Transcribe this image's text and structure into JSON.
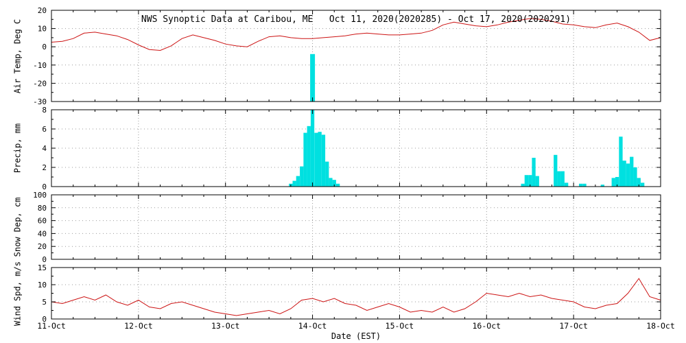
{
  "title": "NWS Synoptic Data at Caribou, ME   Oct 11, 2020(2020285) - Oct 17, 2020(2020291)",
  "xlabel": "Date (EST)",
  "x_tick_labels": [
    "11-Oct",
    "12-Oct",
    "13-Oct",
    "14-Oct",
    "15-Oct",
    "16-Oct",
    "17-Oct",
    "18-Oct"
  ],
  "x_range_days": [
    0,
    7
  ],
  "colors": {
    "temp_line": "#cc1111",
    "wind_line": "#cc1111",
    "precip_bar": "#00e0e0",
    "axis": "#000000",
    "grid_dots": "#999999",
    "background": "#ffffff"
  },
  "chart_data": [
    {
      "type": "line",
      "name": "air-temp",
      "ylabel": "Air Temp, Deg C",
      "ylim": [
        -30,
        20
      ],
      "yticks": [
        20,
        10,
        0,
        -10,
        -20,
        -30
      ],
      "yminor": 5,
      "color_key": "temp_line",
      "x_start": 0,
      "x_step": 0.125,
      "values": [
        2.5,
        3,
        4.5,
        7.5,
        8,
        7,
        6,
        4,
        1,
        -1.5,
        -2,
        0.5,
        4.5,
        6.5,
        5,
        3.5,
        1.5,
        0.5,
        0,
        3,
        5.5,
        6,
        5,
        4.5,
        4.5,
        5,
        5.5,
        6,
        7,
        7.5,
        7,
        6.5,
        6.5,
        7,
        7.5,
        9,
        12,
        13.5,
        12.5,
        11.5,
        11,
        12,
        13.5,
        14.5,
        15.5,
        15,
        14,
        12.5,
        12,
        11,
        10.5,
        12,
        13,
        11,
        8,
        3.5,
        5
      ],
      "precip_overflow_bar": {
        "x": 3.0,
        "top_value": -4,
        "width_days": 0.055
      }
    },
    {
      "type": "bar",
      "name": "precip",
      "ylabel": "Precip, mm",
      "ylim": [
        0,
        8
      ],
      "yticks": [
        0,
        2,
        4,
        6,
        8
      ],
      "yminor": 1,
      "color_key": "precip_bar",
      "bar_width_days": 0.0417,
      "bars": [
        [
          2.75,
          0.3
        ],
        [
          2.792,
          0.6
        ],
        [
          2.833,
          1.1
        ],
        [
          2.875,
          2.1
        ],
        [
          2.917,
          5.6
        ],
        [
          2.958,
          6.3
        ],
        [
          3.0,
          10.5
        ],
        [
          3.042,
          5.6
        ],
        [
          3.083,
          5.7
        ],
        [
          3.125,
          5.4
        ],
        [
          3.167,
          2.6
        ],
        [
          3.208,
          0.9
        ],
        [
          3.25,
          0.7
        ],
        [
          3.292,
          0.3
        ],
        [
          5.417,
          0.3
        ],
        [
          5.458,
          1.2
        ],
        [
          5.5,
          1.2
        ],
        [
          5.542,
          3.0
        ],
        [
          5.583,
          1.1
        ],
        [
          5.792,
          3.3
        ],
        [
          5.833,
          1.6
        ],
        [
          5.875,
          1.6
        ],
        [
          5.917,
          0.4
        ],
        [
          6.083,
          0.3
        ],
        [
          6.125,
          0.3
        ],
        [
          6.333,
          0.2
        ],
        [
          6.458,
          0.9
        ],
        [
          6.5,
          1.0
        ],
        [
          6.542,
          5.2
        ],
        [
          6.583,
          2.7
        ],
        [
          6.625,
          2.4
        ],
        [
          6.667,
          3.1
        ],
        [
          6.708,
          2.0
        ],
        [
          6.75,
          0.9
        ],
        [
          6.792,
          0.4
        ]
      ]
    },
    {
      "type": "line",
      "name": "snow-depth",
      "ylabel": "Snow Dep, cm",
      "ylim": [
        0,
        100
      ],
      "yticks": [
        0,
        20,
        40,
        60,
        80,
        100
      ],
      "yminor": 10,
      "color_key": "temp_line",
      "x_start": 0,
      "x_step": 0.125,
      "values": []
    },
    {
      "type": "line",
      "name": "wind-speed",
      "ylabel": "Wind Spd, m/s",
      "ylim": [
        0,
        15
      ],
      "yticks": [
        0,
        5,
        10,
        15
      ],
      "yminor": 2.5,
      "color_key": "wind_line",
      "x_start": 0,
      "x_step": 0.125,
      "values": [
        5,
        4.5,
        5.5,
        6.5,
        5.5,
        7,
        5,
        4,
        5.5,
        3.5,
        3,
        4.5,
        5,
        4,
        3,
        2,
        1.5,
        1,
        1.5,
        2,
        2.5,
        1.5,
        3,
        5.5,
        6,
        5,
        6,
        4.5,
        4,
        2.5,
        3.5,
        4.5,
        3.5,
        2,
        2.5,
        2,
        3.5,
        2,
        3,
        5,
        7.5,
        7,
        6.5,
        7.5,
        6.5,
        7,
        6,
        5.5,
        5,
        3.5,
        3,
        4,
        4.5,
        7.5,
        11.8,
        6.5,
        5.5
      ]
    }
  ]
}
